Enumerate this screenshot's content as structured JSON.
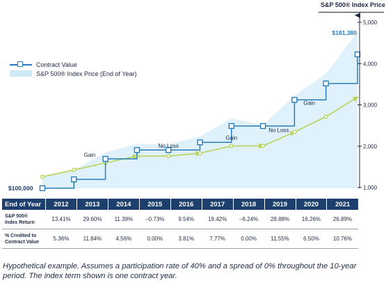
{
  "chart_data": {
    "type": "line",
    "right_axis_title": "S&P 500® Index Price",
    "yticks": [
      "5,000",
      "4,000",
      "3,000",
      "2,000",
      "1,000"
    ],
    "ylim": [
      1000,
      5000
    ],
    "x_labels": [
      "2012",
      "2013",
      "2014",
      "2015",
      "2016",
      "2017",
      "2018",
      "2019",
      "2020",
      "2021"
    ],
    "contract_start_label": "$100,000",
    "contract_end_label": "$181,380",
    "legend": {
      "contract": "Contract Value",
      "index": "S&P 500® Index Price (End of Year)"
    },
    "phase_labels": [
      "Gain",
      "No Loss",
      "Gain",
      "No Loss",
      "Gain"
    ],
    "contract_values": [
      100000,
      105360,
      117830,
      123200,
      123200,
      127900,
      137800,
      137800,
      153700,
      163700,
      181380
    ],
    "index_prices": [
      1258,
      1426,
      1848,
      2059,
      2044,
      2239,
      2674,
      2507,
      3231,
      3756,
      4766
    ],
    "arrow_points": [
      1258,
      1426,
      1598,
      1762,
      1762,
      1830,
      2006,
      2006,
      2344,
      2715,
      3186
    ]
  },
  "table": {
    "header": "End of Year",
    "years": [
      "2012",
      "2013",
      "2014",
      "2015",
      "2016",
      "2017",
      "2018",
      "2019",
      "2020",
      "2021"
    ],
    "rows": [
      {
        "label_line1": "S&P 500®",
        "label_line2": "Index Return",
        "values": [
          "13.41%",
          "29.60%",
          "11.39%",
          "–0.73%",
          "9.54%",
          "19.42%",
          "–6.24%",
          "28.88%",
          "16.26%",
          "26.89%"
        ]
      },
      {
        "label_line1": "% Credited to",
        "label_line2": "Contract Value",
        "values": [
          "5.36%",
          "11.84%",
          "4.56%",
          "0.00%",
          "3.81%",
          "7.77%",
          "0.00%",
          "11.55%",
          "6.50%",
          "10.76%"
        ]
      }
    ]
  },
  "footnote": "Hypothetical example. Assumes a participation rate of 40% and a spread of 0% throughout the 10-year period. The index term shown is one contract year.",
  "colors": {
    "contract": "#2a7db8",
    "index_fill": "#dff1fa",
    "arrow": "#b8d35a",
    "header": "#1c3f6e"
  }
}
